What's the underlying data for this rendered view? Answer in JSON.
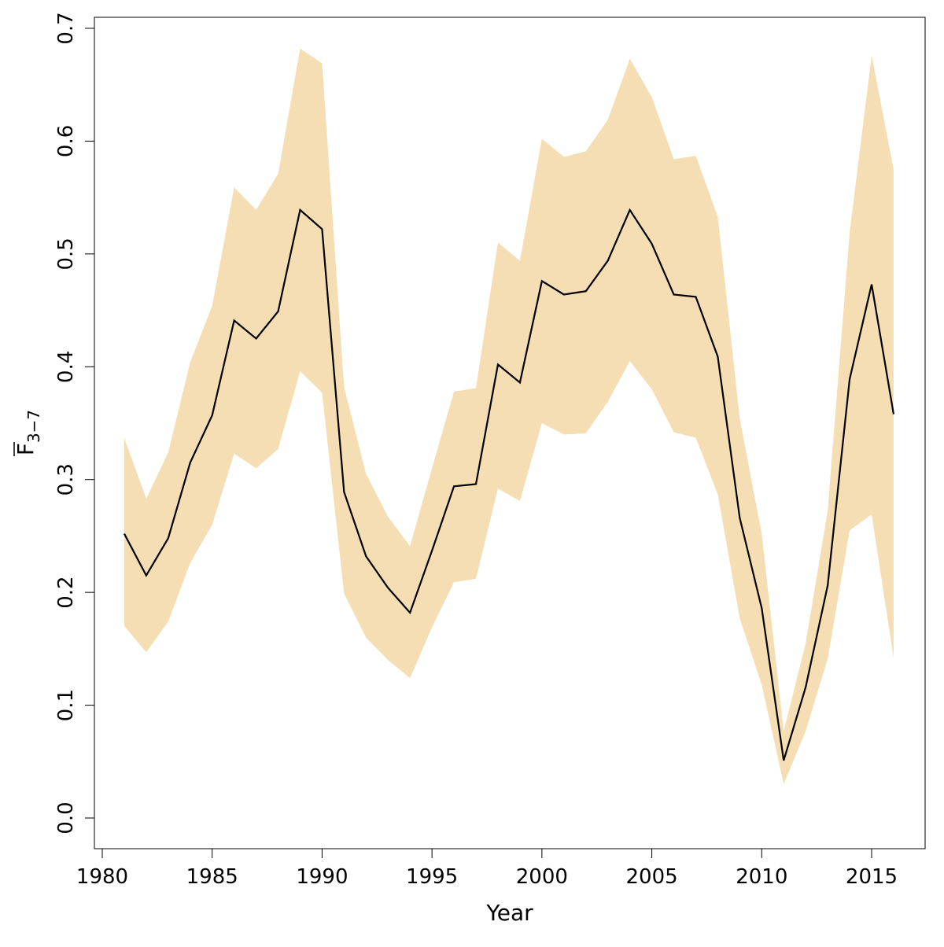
{
  "chart_data": {
    "type": "line",
    "title": "",
    "xlabel": "Year",
    "ylabel_main": "F",
    "ylabel_sub": "3−7",
    "xlim": [
      1980,
      2016
    ],
    "ylim": [
      0,
      0.7
    ],
    "xticks": [
      "1980",
      "1985",
      "1990",
      "1995",
      "2000",
      "2005",
      "2010",
      "2015"
    ],
    "yticks": [
      "0.0",
      "0.1",
      "0.2",
      "0.3",
      "0.4",
      "0.5",
      "0.6",
      "0.7"
    ],
    "band_color": "#F5DEB3",
    "line_color": "#000000",
    "x": [
      1981,
      1982,
      1983,
      1984,
      1985,
      1986,
      1987,
      1988,
      1989,
      1990,
      1991,
      1992,
      1993,
      1994,
      1995,
      1996,
      1997,
      1998,
      1999,
      2000,
      2001,
      2002,
      2003,
      2004,
      2005,
      2006,
      2007,
      2008,
      2009,
      2010,
      2011,
      2012,
      2013,
      2014,
      2015,
      2016
    ],
    "series": [
      {
        "name": "estimate",
        "values": [
          0.252,
          0.215,
          0.248,
          0.315,
          0.357,
          0.441,
          0.425,
          0.449,
          0.539,
          0.522,
          0.289,
          0.232,
          0.204,
          0.182,
          0.237,
          0.294,
          0.296,
          0.402,
          0.386,
          0.476,
          0.464,
          0.467,
          0.494,
          0.539,
          0.509,
          0.464,
          0.462,
          0.409,
          0.266,
          0.186,
          0.051,
          0.116,
          0.206,
          0.389,
          0.473,
          0.358
        ]
      },
      {
        "name": "upper",
        "values": [
          0.337,
          0.283,
          0.324,
          0.404,
          0.454,
          0.559,
          0.539,
          0.571,
          0.682,
          0.669,
          0.382,
          0.305,
          0.267,
          0.241,
          0.31,
          0.378,
          0.381,
          0.51,
          0.494,
          0.602,
          0.586,
          0.591,
          0.619,
          0.673,
          0.639,
          0.584,
          0.587,
          0.533,
          0.354,
          0.252,
          0.077,
          0.155,
          0.272,
          0.519,
          0.676,
          0.575
        ]
      },
      {
        "name": "lower",
        "values": [
          0.17,
          0.147,
          0.174,
          0.226,
          0.26,
          0.323,
          0.31,
          0.327,
          0.396,
          0.377,
          0.199,
          0.16,
          0.14,
          0.124,
          0.169,
          0.209,
          0.212,
          0.292,
          0.281,
          0.35,
          0.34,
          0.341,
          0.369,
          0.405,
          0.38,
          0.342,
          0.337,
          0.287,
          0.177,
          0.118,
          0.03,
          0.077,
          0.141,
          0.255,
          0.269,
          0.142
        ]
      }
    ]
  }
}
